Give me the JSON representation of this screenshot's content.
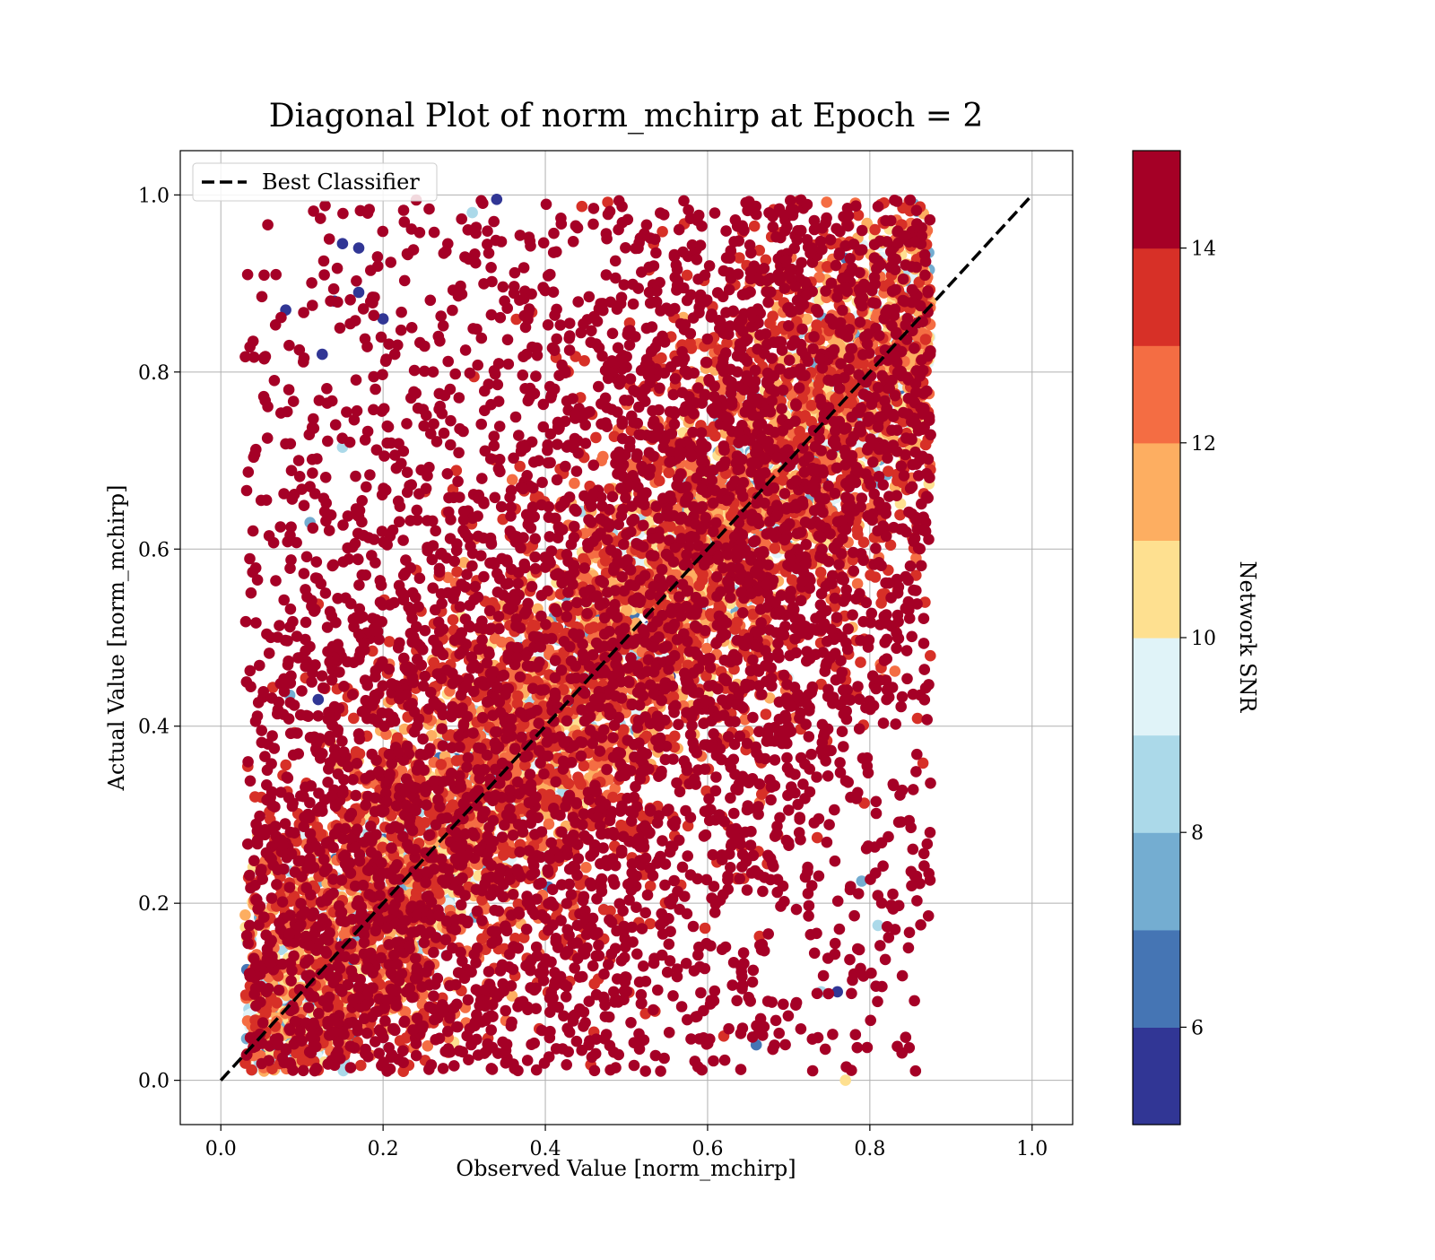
{
  "chart_data": {
    "type": "scatter",
    "title": "Diagonal Plot of norm_mchirp at Epoch = 2",
    "xlabel": "Observed Value [norm_mchirp]",
    "ylabel": "Actual Value [norm_mchirp]",
    "xlim": [
      -0.05,
      1.05
    ],
    "ylim": [
      -0.05,
      1.05
    ],
    "xticks": [
      0.0,
      0.2,
      0.4,
      0.6,
      0.8,
      1.0
    ],
    "yticks": [
      0.0,
      0.2,
      0.4,
      0.6,
      0.8,
      1.0
    ],
    "xtick_labels": [
      "0.0",
      "0.2",
      "0.4",
      "0.6",
      "0.8",
      "1.0"
    ],
    "ytick_labels": [
      "0.0",
      "0.2",
      "0.4",
      "0.6",
      "0.8",
      "1.0"
    ],
    "grid": true,
    "legend": {
      "placement": "upper-left",
      "entries": [
        {
          "label": "Best Classifier",
          "style": "dashed",
          "color": "#000000"
        }
      ]
    },
    "reference_line": {
      "x": [
        0.0,
        1.0
      ],
      "y": [
        0.0,
        1.0
      ],
      "style": "dashed",
      "color": "#000000"
    },
    "colorbar": {
      "label": "Network SNR",
      "range": [
        5,
        15
      ],
      "ticks": [
        6,
        8,
        10,
        12,
        14
      ],
      "tick_labels": [
        "6",
        "8",
        "10",
        "12",
        "14"
      ],
      "colors": [
        "#313695",
        "#4575b4",
        "#74add1",
        "#abd9e9",
        "#e0f3f8",
        "#fee090",
        "#fdae61",
        "#f46d43",
        "#d73027",
        "#a50026"
      ]
    },
    "points": [
      {
        "x": 0.08,
        "y": 0.87,
        "c": 5.5
      },
      {
        "x": 0.15,
        "y": 0.945,
        "c": 5.5
      },
      {
        "x": 0.17,
        "y": 0.94,
        "c": 5.5
      },
      {
        "x": 0.14,
        "y": 0.88,
        "c": 5.5
      },
      {
        "x": 0.17,
        "y": 0.89,
        "c": 5.5
      },
      {
        "x": 0.125,
        "y": 0.82,
        "c": 5.5
      },
      {
        "x": 0.2,
        "y": 0.86,
        "c": 5.5
      },
      {
        "x": 0.15,
        "y": 0.715,
        "c": 8.5
      },
      {
        "x": 0.11,
        "y": 0.63,
        "c": 7.5
      },
      {
        "x": 0.085,
        "y": 0.435,
        "c": 7.5
      },
      {
        "x": 0.12,
        "y": 0.43,
        "c": 5.5
      },
      {
        "x": 0.34,
        "y": 0.995,
        "c": 5.5
      },
      {
        "x": 0.31,
        "y": 0.98,
        "c": 8.5
      },
      {
        "x": 0.81,
        "y": 0.175,
        "c": 8.5
      },
      {
        "x": 0.77,
        "y": 0.0,
        "c": 10.5
      },
      {
        "x": 0.62,
        "y": 0.05,
        "c": 13.5
      },
      {
        "x": 0.66,
        "y": 0.04,
        "c": 6.5
      },
      {
        "x": 0.79,
        "y": 0.225,
        "c": 7.5
      },
      {
        "x": 0.76,
        "y": 0.1,
        "c": 5.5
      },
      {
        "x": 0.74,
        "y": 0.1,
        "c": 8.5
      }
    ]
  }
}
